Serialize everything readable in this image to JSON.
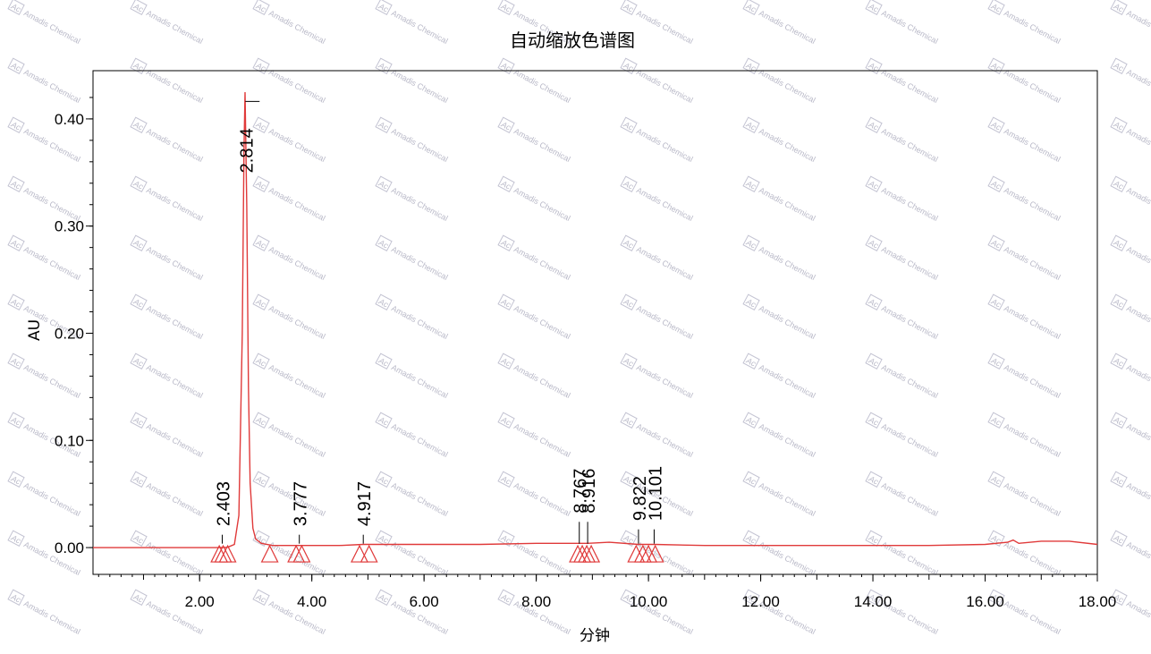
{
  "watermark": "Amadis Chemical",
  "watermark_logo": "Ac",
  "chart_data": {
    "type": "line",
    "title": "自动缩放色谱图",
    "xlabel": "分钟",
    "ylabel": "AU",
    "xlim": [
      0.1,
      18.0
    ],
    "ylim": [
      -0.025,
      0.445
    ],
    "x_ticks": [
      2.0,
      4.0,
      6.0,
      8.0,
      10.0,
      12.0,
      14.0,
      16.0,
      18.0
    ],
    "x_tick_labels": [
      "2.00",
      "4.00",
      "6.00",
      "8.00",
      "10.00",
      "12.00",
      "14.00",
      "16.00",
      "18.00"
    ],
    "y_ticks": [
      0.0,
      0.1,
      0.2,
      0.3,
      0.4
    ],
    "y_tick_labels": [
      "0.00",
      "0.10",
      "0.20",
      "0.30",
      "0.40"
    ],
    "grid": false,
    "line_color": "#e03a3a",
    "marker_color": "#e03a3a",
    "series": [
      {
        "x": [
          0.1,
          1.0,
          2.0,
          2.3,
          2.5,
          2.62,
          2.7,
          2.76,
          2.79,
          2.81,
          2.84,
          2.87,
          2.9,
          2.95,
          3.0,
          3.1,
          3.3,
          3.6,
          3.777,
          4.0,
          4.5,
          4.917,
          5.5,
          6.0,
          7.0,
          8.0,
          8.767,
          8.916,
          9.3,
          9.822,
          10.101,
          11.0,
          12.0,
          13.0,
          14.0,
          15.0,
          16.0,
          16.4,
          16.5,
          16.6,
          17.0,
          17.5,
          18.0
        ],
        "y": [
          0.0,
          0.0,
          0.0,
          0.0,
          0.0003,
          0.003,
          0.03,
          0.2,
          0.37,
          0.425,
          0.32,
          0.15,
          0.06,
          0.018,
          0.008,
          0.004,
          0.002,
          0.002,
          0.002,
          0.002,
          0.002,
          0.003,
          0.003,
          0.003,
          0.003,
          0.004,
          0.004,
          0.004,
          0.005,
          0.003,
          0.003,
          0.002,
          0.002,
          0.002,
          0.002,
          0.002,
          0.003,
          0.005,
          0.007,
          0.004,
          0.006,
          0.006,
          0.003
        ]
      }
    ],
    "peaks": [
      {
        "rt": 2.403,
        "label": "2.403",
        "tick_top": 0.012,
        "label_base": 0.02,
        "label_align": "above"
      },
      {
        "rt": 2.814,
        "label": "2.814",
        "tick_top": 0.413,
        "label_base": 0.413,
        "label_align": "below"
      },
      {
        "rt": 3.777,
        "label": "3.777",
        "tick_top": 0.012,
        "label_base": 0.02,
        "label_align": "above"
      },
      {
        "rt": 4.917,
        "label": "4.917",
        "tick_top": 0.012,
        "label_base": 0.02,
        "label_align": "above"
      },
      {
        "rt": 8.767,
        "label": "8.767",
        "tick_top": 0.024,
        "label_base": 0.032,
        "label_align": "above"
      },
      {
        "rt": 8.916,
        "label": "8.916",
        "tick_top": 0.024,
        "label_base": 0.032,
        "label_align": "above"
      },
      {
        "rt": 9.822,
        "label": "9.822",
        "tick_top": 0.017,
        "label_base": 0.025,
        "label_align": "above"
      },
      {
        "rt": 10.101,
        "label": "10.101",
        "tick_top": 0.017,
        "label_base": 0.025,
        "label_align": "above"
      }
    ],
    "markers_rt": [
      2.35,
      2.42,
      2.5,
      3.25,
      3.72,
      3.82,
      4.85,
      5.02,
      8.74,
      8.82,
      8.9,
      8.98,
      9.78,
      9.9,
      10.0,
      10.12
    ]
  }
}
